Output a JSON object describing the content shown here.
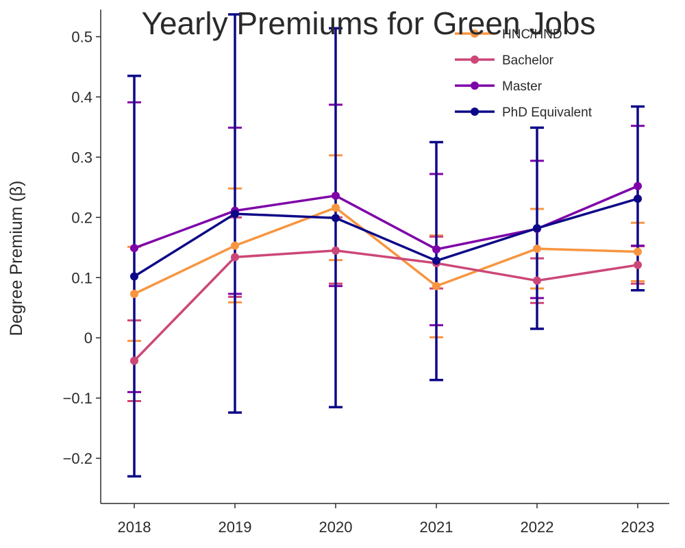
{
  "chart_data": {
    "type": "line",
    "title": "Yearly Premiums for Green Jobs",
    "xlabel": "",
    "ylabel": "Degree Premium (β)",
    "categories": [
      "2018",
      "2019",
      "2020",
      "2021",
      "2022",
      "2023"
    ],
    "ylim": [
      -0.275,
      0.545
    ],
    "yticks": [
      -0.2,
      -0.1,
      0,
      0.1,
      0.2,
      0.3,
      0.4,
      0.5
    ],
    "ytick_labels": [
      "−0.2",
      "−0.1",
      "0",
      "0.1",
      "0.2",
      "0.3",
      "0.4",
      "0.5"
    ],
    "grid": false,
    "legend_position": "top-right",
    "series": [
      {
        "name": "HNC/HND",
        "color": "#f89540",
        "values": [
          0.073,
          0.153,
          0.216,
          0.086,
          0.148,
          0.143
        ],
        "error_lower": [
          -0.005,
          0.059,
          0.129,
          0.001,
          0.082,
          0.094
        ],
        "error_upper": [
          0.151,
          0.248,
          0.303,
          0.17,
          0.214,
          0.191
        ]
      },
      {
        "name": "Bachelor",
        "color": "#cc4778",
        "values": [
          -0.038,
          0.134,
          0.145,
          0.124,
          0.095,
          0.121
        ],
        "error_lower": [
          -0.105,
          0.068,
          0.09,
          0.082,
          0.058,
          0.09
        ],
        "error_upper": [
          0.029,
          0.2,
          0.2,
          0.168,
          0.132,
          0.152
        ]
      },
      {
        "name": "Master",
        "color": "#7e03a8",
        "values": [
          0.149,
          0.211,
          0.236,
          0.147,
          0.181,
          0.252
        ],
        "error_lower": [
          -0.09,
          0.073,
          0.086,
          0.021,
          0.066,
          0.153
        ],
        "error_upper": [
          0.391,
          0.349,
          0.387,
          0.272,
          0.294,
          0.352
        ]
      },
      {
        "name": "PhD Equivalent",
        "color": "#0d0887",
        "values": [
          0.102,
          0.206,
          0.199,
          0.128,
          0.182,
          0.231
        ],
        "error_lower": [
          -0.23,
          -0.124,
          -0.115,
          -0.07,
          0.015,
          0.079
        ],
        "error_upper": [
          0.435,
          0.537,
          0.514,
          0.325,
          0.349,
          0.384
        ]
      }
    ]
  }
}
